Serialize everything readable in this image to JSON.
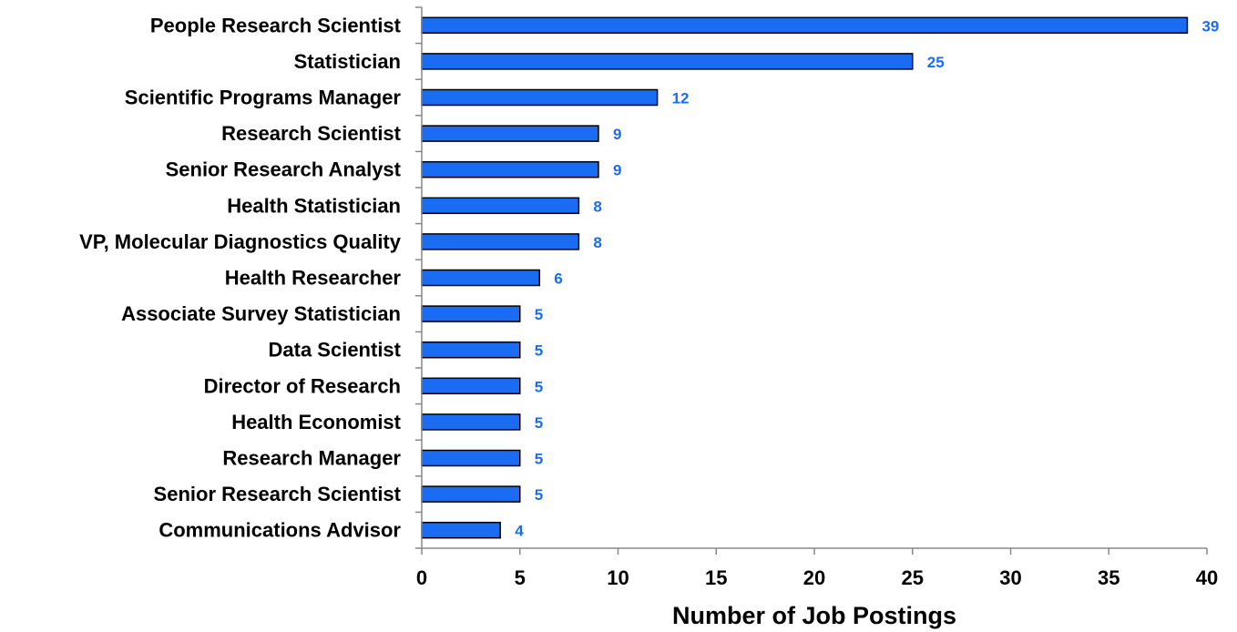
{
  "chart_data": {
    "type": "bar",
    "orientation": "horizontal",
    "categories": [
      "People Research Scientist",
      "Statistician",
      "Scientific Programs Manager",
      "Research Scientist",
      "Senior Research Analyst",
      "Health Statistician",
      "VP, Molecular Diagnostics Quality",
      "Health Researcher",
      "Associate Survey Statistician",
      "Data Scientist",
      "Director of Research",
      "Health Economist",
      "Research Manager",
      "Senior Research Scientist",
      "Communications Advisor"
    ],
    "values": [
      39,
      25,
      12,
      9,
      9,
      8,
      8,
      6,
      5,
      5,
      5,
      5,
      5,
      5,
      4
    ],
    "title": "",
    "xlabel": "Number of Job Postings",
    "ylabel": "",
    "xlim": [
      0,
      40
    ],
    "xticks": [
      0,
      5,
      10,
      15,
      20,
      25,
      30,
      35,
      40
    ],
    "grid": false,
    "legend": "none",
    "colors": {
      "bar_fill": "#1a6cf2",
      "bar_stroke": "#000000",
      "value_label": "#1a6cf2"
    }
  }
}
